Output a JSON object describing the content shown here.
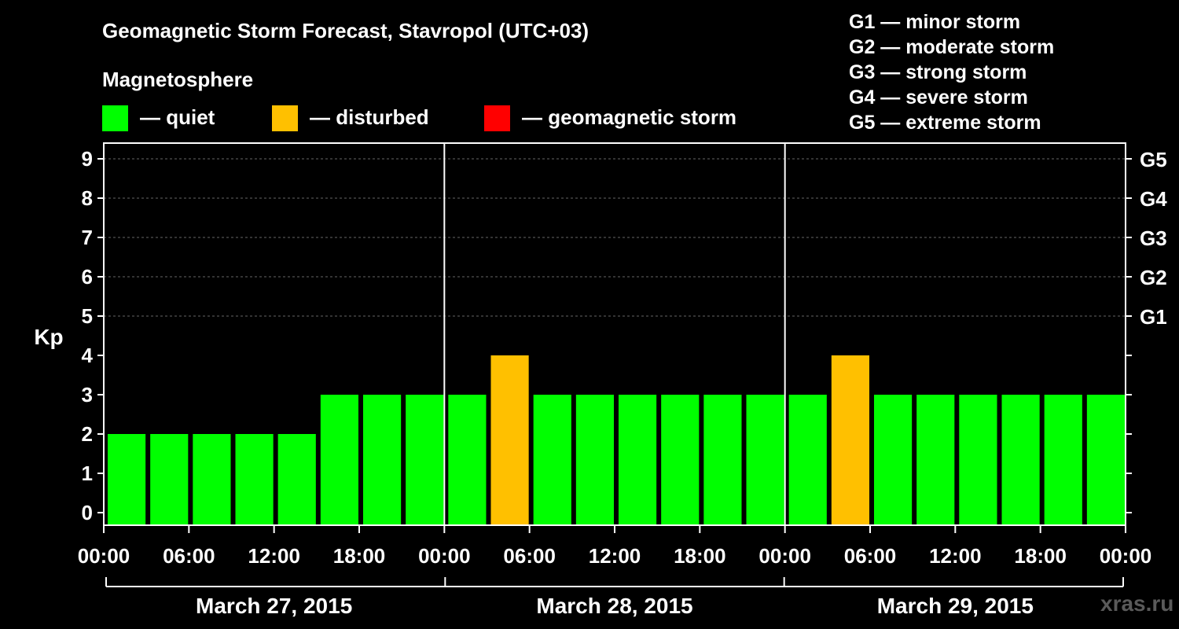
{
  "title": "Geomagnetic Storm Forecast, Stavropol (UTC+03)",
  "legend": {
    "heading": "Magnetosphere",
    "items": [
      {
        "label": "— quiet",
        "color": "#00ff00"
      },
      {
        "label": "— disturbed",
        "color": "#ffc000"
      },
      {
        "label": "— geomagnetic storm",
        "color": "#ff0000"
      }
    ]
  },
  "storm_scale": [
    "G1 — minor storm",
    "G2 — moderate storm",
    "G3 — strong storm",
    "G4 — severe storm",
    "G5 — extreme storm"
  ],
  "watermark": "xras.ru",
  "chart_data": {
    "type": "bar",
    "title": "Geomagnetic Storm Forecast, Stavropol (UTC+03)",
    "ylabel": "Kp",
    "ylim": [
      0,
      9
    ],
    "yticks": [
      "0",
      "1",
      "2",
      "3",
      "4",
      "5",
      "6",
      "7",
      "8",
      "9"
    ],
    "right_axis": [
      {
        "kp": 5,
        "label": "G1"
      },
      {
        "kp": 6,
        "label": "G2"
      },
      {
        "kp": 7,
        "label": "G3"
      },
      {
        "kp": 8,
        "label": "G4"
      },
      {
        "kp": 9,
        "label": "G5"
      }
    ],
    "xtick_labels": [
      "00:00",
      "06:00",
      "12:00",
      "18:00",
      "00:00",
      "06:00",
      "12:00",
      "18:00",
      "00:00",
      "06:00",
      "12:00",
      "18:00",
      "00:00"
    ],
    "days": [
      "March 27, 2015",
      "March 28, 2015",
      "March 29, 2015"
    ],
    "interval_hours": 3,
    "values": [
      2,
      2,
      2,
      2,
      2,
      3,
      3,
      3,
      3,
      4,
      3,
      3,
      3,
      3,
      3,
      3,
      3,
      4,
      3,
      3,
      3,
      3,
      3,
      3
    ],
    "colors": {
      "quiet": "#00ff00",
      "disturbed": "#ffc000",
      "storm": "#ff0000"
    },
    "grid": "dashed at Kp 5-9"
  }
}
